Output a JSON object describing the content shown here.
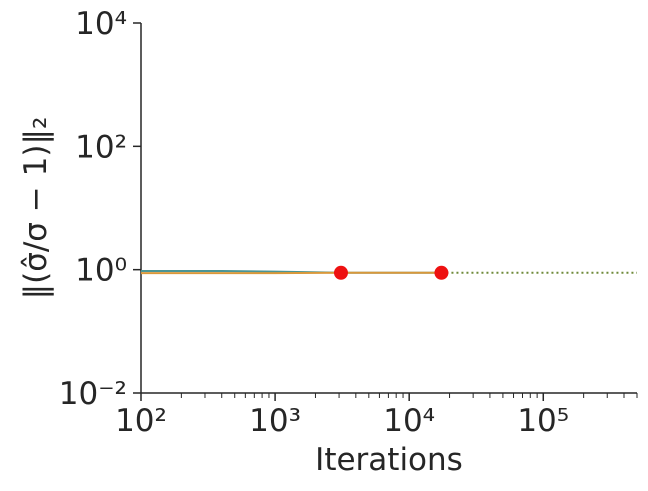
{
  "chart_data": {
    "type": "line",
    "xlabel": "Iterations",
    "ylabel": "‖(σ̂/σ − 1)‖₂",
    "xscale": "log",
    "yscale": "log",
    "xlim": [
      100,
      500000
    ],
    "ylim": [
      0.01,
      10000
    ],
    "xticks": [
      {
        "value": 100,
        "label": "10²"
      },
      {
        "value": 1000,
        "label": "10³"
      },
      {
        "value": 10000,
        "label": "10⁴"
      },
      {
        "value": 100000,
        "label": "10⁵"
      }
    ],
    "yticks": [
      {
        "value": 0.01,
        "label": "10⁻²"
      },
      {
        "value": 1,
        "label": "10⁰"
      },
      {
        "value": 100,
        "label": "10²"
      },
      {
        "value": 10000,
        "label": "10⁴"
      }
    ],
    "minor_xticks": true,
    "series": [
      {
        "color": "#4a9595",
        "style": "solid",
        "x": [
          100,
          400,
          1000,
          3100,
          17400
        ],
        "values": [
          0.95,
          0.95,
          0.93,
          0.89,
          0.89
        ]
      },
      {
        "color": "#d9983a",
        "style": "solid",
        "x": [
          100,
          1000,
          3100,
          17400
        ],
        "values": [
          0.88,
          0.88,
          0.89,
          0.89
        ]
      },
      {
        "color": "#6f8a3a",
        "style": "dotted",
        "x": [
          17400,
          500000
        ],
        "values": [
          0.89,
          0.89
        ]
      }
    ],
    "markers": {
      "color": "#ee1111",
      "x": [
        3100,
        17400
      ],
      "values": [
        0.89,
        0.89
      ]
    }
  }
}
